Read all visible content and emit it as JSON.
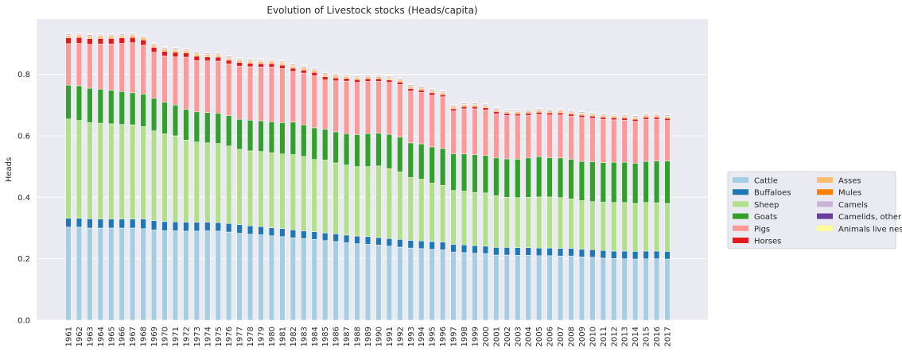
{
  "chart_data": {
    "type": "bar",
    "stacked": true,
    "title": "Evolution of Livestock stocks (Heads/capita)",
    "xlabel": "",
    "ylabel": "Heads",
    "ylim": [
      0,
      0.98
    ],
    "yticks": [
      0.0,
      0.2,
      0.4,
      0.6,
      0.8
    ],
    "ytick_labels": [
      "0.0",
      "0.2",
      "0.4",
      "0.6",
      "0.8"
    ],
    "grid": true,
    "legend_position": "right",
    "categories": [
      "1961",
      "1962",
      "1963",
      "1964",
      "1965",
      "1966",
      "1967",
      "1968",
      "1969",
      "1970",
      "1971",
      "1972",
      "1973",
      "1974",
      "1975",
      "1976",
      "1977",
      "1978",
      "1979",
      "1980",
      "1981",
      "1982",
      "1983",
      "1984",
      "1985",
      "1986",
      "1987",
      "1988",
      "1989",
      "1990",
      "1991",
      "1992",
      "1993",
      "1994",
      "1995",
      "1996",
      "1997",
      "1998",
      "1999",
      "2000",
      "2001",
      "2002",
      "2003",
      "2004",
      "2005",
      "2006",
      "2007",
      "2008",
      "2009",
      "2010",
      "2011",
      "2012",
      "2013",
      "2014",
      "2015",
      "2016",
      "2017"
    ],
    "series": [
      {
        "name": "Cattle",
        "color": "#a6cee3",
        "values": [
          0.303,
          0.303,
          0.3,
          0.3,
          0.3,
          0.3,
          0.3,
          0.298,
          0.294,
          0.291,
          0.291,
          0.29,
          0.29,
          0.291,
          0.29,
          0.287,
          0.283,
          0.28,
          0.278,
          0.275,
          0.272,
          0.268,
          0.266,
          0.263,
          0.259,
          0.256,
          0.252,
          0.249,
          0.247,
          0.245,
          0.241,
          0.238,
          0.235,
          0.233,
          0.231,
          0.229,
          0.222,
          0.22,
          0.218,
          0.217,
          0.212,
          0.212,
          0.211,
          0.211,
          0.21,
          0.21,
          0.209,
          0.209,
          0.206,
          0.205,
          0.202,
          0.201,
          0.2,
          0.199,
          0.2,
          0.2,
          0.199
        ]
      },
      {
        "name": "Buffaloes",
        "color": "#1f78b4",
        "values": [
          0.029,
          0.029,
          0.03,
          0.029,
          0.029,
          0.029,
          0.029,
          0.031,
          0.03,
          0.03,
          0.029,
          0.029,
          0.029,
          0.028,
          0.028,
          0.028,
          0.028,
          0.027,
          0.027,
          0.026,
          0.026,
          0.026,
          0.025,
          0.025,
          0.025,
          0.025,
          0.025,
          0.025,
          0.025,
          0.024,
          0.025,
          0.025,
          0.025,
          0.025,
          0.025,
          0.025,
          0.025,
          0.025,
          0.025,
          0.024,
          0.025,
          0.025,
          0.025,
          0.025,
          0.025,
          0.025,
          0.025,
          0.025,
          0.025,
          0.025,
          0.025,
          0.024,
          0.025,
          0.025,
          0.025,
          0.025,
          0.025
        ]
      },
      {
        "name": "Sheep",
        "color": "#b2df8a",
        "values": [
          0.323,
          0.318,
          0.313,
          0.312,
          0.31,
          0.308,
          0.307,
          0.301,
          0.292,
          0.286,
          0.28,
          0.267,
          0.261,
          0.258,
          0.257,
          0.252,
          0.245,
          0.244,
          0.244,
          0.244,
          0.243,
          0.245,
          0.242,
          0.235,
          0.237,
          0.231,
          0.228,
          0.226,
          0.228,
          0.233,
          0.227,
          0.22,
          0.205,
          0.201,
          0.19,
          0.185,
          0.175,
          0.175,
          0.173,
          0.173,
          0.168,
          0.163,
          0.163,
          0.164,
          0.166,
          0.166,
          0.165,
          0.161,
          0.158,
          0.156,
          0.157,
          0.158,
          0.158,
          0.156,
          0.158,
          0.157,
          0.156
        ]
      },
      {
        "name": "Goats",
        "color": "#33a02c",
        "values": [
          0.11,
          0.113,
          0.112,
          0.111,
          0.109,
          0.107,
          0.104,
          0.106,
          0.106,
          0.103,
          0.1,
          0.1,
          0.098,
          0.099,
          0.099,
          0.099,
          0.098,
          0.1,
          0.1,
          0.101,
          0.102,
          0.106,
          0.103,
          0.103,
          0.101,
          0.101,
          0.102,
          0.104,
          0.107,
          0.107,
          0.112,
          0.113,
          0.112,
          0.115,
          0.118,
          0.12,
          0.12,
          0.121,
          0.123,
          0.122,
          0.123,
          0.125,
          0.125,
          0.128,
          0.131,
          0.128,
          0.129,
          0.129,
          0.128,
          0.13,
          0.129,
          0.131,
          0.131,
          0.131,
          0.134,
          0.136,
          0.138
        ]
      },
      {
        "name": "Pigs",
        "color": "#fb9a99",
        "values": [
          0.135,
          0.138,
          0.143,
          0.147,
          0.151,
          0.157,
          0.163,
          0.159,
          0.15,
          0.15,
          0.157,
          0.17,
          0.167,
          0.168,
          0.169,
          0.168,
          0.173,
          0.174,
          0.175,
          0.178,
          0.176,
          0.165,
          0.168,
          0.17,
          0.16,
          0.166,
          0.171,
          0.17,
          0.17,
          0.168,
          0.169,
          0.171,
          0.169,
          0.167,
          0.168,
          0.168,
          0.139,
          0.147,
          0.149,
          0.148,
          0.144,
          0.141,
          0.141,
          0.139,
          0.138,
          0.139,
          0.14,
          0.14,
          0.143,
          0.141,
          0.141,
          0.138,
          0.137,
          0.136,
          0.137,
          0.136,
          0.132
        ]
      },
      {
        "name": "Horses",
        "color": "#e31a1c",
        "values": [
          0.019,
          0.019,
          0.018,
          0.018,
          0.018,
          0.018,
          0.017,
          0.017,
          0.016,
          0.015,
          0.015,
          0.014,
          0.014,
          0.013,
          0.013,
          0.012,
          0.012,
          0.011,
          0.011,
          0.011,
          0.011,
          0.01,
          0.01,
          0.01,
          0.01,
          0.009,
          0.009,
          0.009,
          0.009,
          0.009,
          0.008,
          0.008,
          0.008,
          0.008,
          0.008,
          0.007,
          0.007,
          0.007,
          0.007,
          0.007,
          0.007,
          0.007,
          0.007,
          0.007,
          0.007,
          0.007,
          0.007,
          0.007,
          0.007,
          0.007,
          0.007,
          0.007,
          0.007,
          0.007,
          0.007,
          0.007,
          0.007
        ]
      },
      {
        "name": "Asses",
        "color": "#fdbf6f",
        "values": [
          0.007,
          0.007,
          0.007,
          0.007,
          0.007,
          0.007,
          0.007,
          0.007,
          0.007,
          0.007,
          0.007,
          0.007,
          0.007,
          0.007,
          0.007,
          0.007,
          0.007,
          0.007,
          0.007,
          0.007,
          0.007,
          0.007,
          0.007,
          0.007,
          0.007,
          0.007,
          0.006,
          0.006,
          0.006,
          0.006,
          0.006,
          0.006,
          0.006,
          0.006,
          0.006,
          0.006,
          0.006,
          0.006,
          0.006,
          0.006,
          0.006,
          0.006,
          0.006,
          0.006,
          0.006,
          0.006,
          0.006,
          0.006,
          0.006,
          0.006,
          0.006,
          0.006,
          0.006,
          0.006,
          0.006,
          0.006,
          0.006
        ]
      },
      {
        "name": "Mules",
        "color": "#ff7f00",
        "values": [
          0.002,
          0.002,
          0.002,
          0.002,
          0.002,
          0.002,
          0.002,
          0.002,
          0.002,
          0.002,
          0.002,
          0.002,
          0.002,
          0.002,
          0.002,
          0.002,
          0.002,
          0.002,
          0.002,
          0.002,
          0.002,
          0.002,
          0.002,
          0.002,
          0.002,
          0.002,
          0.002,
          0.002,
          0.002,
          0.002,
          0.002,
          0.002,
          0.002,
          0.002,
          0.002,
          0.002,
          0.002,
          0.002,
          0.002,
          0.002,
          0.001,
          0.001,
          0.001,
          0.001,
          0.001,
          0.001,
          0.001,
          0.001,
          0.001,
          0.001,
          0.001,
          0.001,
          0.001,
          0.001,
          0.001,
          0.001,
          0.001
        ]
      },
      {
        "name": "Camels",
        "color": "#cab2d6",
        "values": [
          0.004,
          0.004,
          0.004,
          0.004,
          0.004,
          0.004,
          0.004,
          0.004,
          0.004,
          0.004,
          0.004,
          0.004,
          0.004,
          0.004,
          0.004,
          0.004,
          0.004,
          0.004,
          0.004,
          0.004,
          0.004,
          0.004,
          0.004,
          0.004,
          0.004,
          0.004,
          0.004,
          0.004,
          0.004,
          0.004,
          0.004,
          0.004,
          0.004,
          0.004,
          0.004,
          0.004,
          0.004,
          0.004,
          0.004,
          0.004,
          0.004,
          0.004,
          0.004,
          0.004,
          0.004,
          0.004,
          0.004,
          0.004,
          0.004,
          0.004,
          0.004,
          0.004,
          0.004,
          0.004,
          0.004,
          0.004,
          0.004
        ]
      },
      {
        "name": "Camelids, other",
        "color": "#6a3d9a",
        "values": [
          0.001,
          0.001,
          0.001,
          0.001,
          0.001,
          0.001,
          0.001,
          0.001,
          0.001,
          0.001,
          0.001,
          0.001,
          0.001,
          0.001,
          0.001,
          0.001,
          0.001,
          0.001,
          0.001,
          0.001,
          0.001,
          0.001,
          0.001,
          0.001,
          0.001,
          0.001,
          0.001,
          0.001,
          0.001,
          0.001,
          0.001,
          0.001,
          0.001,
          0.001,
          0.001,
          0.001,
          0.001,
          0.001,
          0.001,
          0.001,
          0.001,
          0.001,
          0.001,
          0.001,
          0.001,
          0.001,
          0.001,
          0.001,
          0.001,
          0.001,
          0.001,
          0.001,
          0.001,
          0.001,
          0.001,
          0.001,
          0.001
        ]
      },
      {
        "name": "Animals live nes",
        "color": "#ffff99",
        "values": [
          0.002,
          0.002,
          0.002,
          0.002,
          0.002,
          0.002,
          0.002,
          0.002,
          0.002,
          0.002,
          0.002,
          0.002,
          0.002,
          0.002,
          0.002,
          0.002,
          0.002,
          0.002,
          0.002,
          0.002,
          0.002,
          0.002,
          0.002,
          0.002,
          0.002,
          0.002,
          0.002,
          0.002,
          0.002,
          0.002,
          0.002,
          0.002,
          0.002,
          0.002,
          0.002,
          0.002,
          0.002,
          0.002,
          0.002,
          0.002,
          0.002,
          0.002,
          0.002,
          0.002,
          0.002,
          0.002,
          0.002,
          0.002,
          0.002,
          0.002,
          0.002,
          0.002,
          0.002,
          0.002,
          0.002,
          0.002,
          0.002
        ]
      }
    ],
    "style": {
      "plot_background": "#eaeaf2",
      "grid_color": "#ffffff",
      "segment_edge": "#ffffff",
      "text_color": "#262626"
    }
  }
}
